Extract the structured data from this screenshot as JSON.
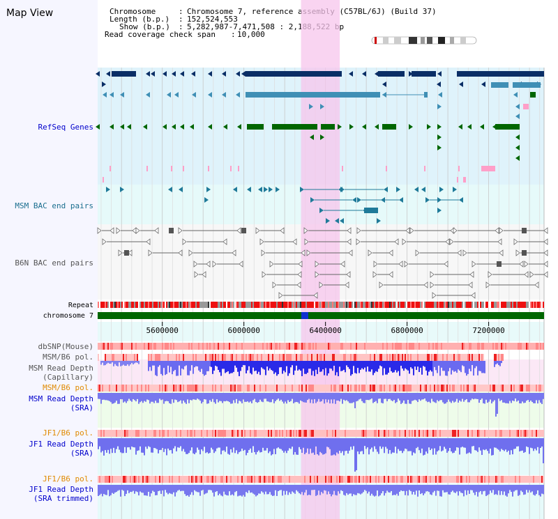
{
  "page": {
    "title": "Map View"
  },
  "header": {
    "chromosome_label": "Chromosome",
    "chromosome_value": "Chromosome 7, reference assembly (C57BL/6J) (Build 37)",
    "length_label": "Length (b.p.)",
    "length_value": "152,524,553",
    "show_label": "Show (b.p.)",
    "show_value": "5,282,987-7,471,508 : 2,188,522 bp",
    "coverage_label": "Read coverage check span",
    "coverage_value": "10,000",
    "separator": ":"
  },
  "tracks": [
    {
      "id": "refseq",
      "label": "RefSeq Genes",
      "color": "#0000cc",
      "bg": "#dff3fb"
    },
    {
      "id": "msm-bac",
      "label": "MSM BAC end pairs",
      "color": "#1a6e8e",
      "bg": "#e6fafa"
    },
    {
      "id": "b6n-bac",
      "label": "B6N BAC end pairs",
      "color": "#555555",
      "bg": "#f7f7f7"
    },
    {
      "id": "repeat",
      "label": "Repeat",
      "color": "#000000"
    },
    {
      "id": "chromosome",
      "label": "chromosome 7",
      "color": "#000000"
    },
    {
      "id": "dbsnp",
      "label": "dbSNP(Mouse)",
      "color": "#555555"
    },
    {
      "id": "msm-b6-pol-1",
      "label": "MSM/B6 pol.",
      "color": "#555555"
    },
    {
      "id": "msm-depth-cap",
      "label": "MSM Read Depth (Capillary)",
      "lines": [
        "MSM Read Depth",
        "(Capillary)"
      ],
      "color": "#555555"
    },
    {
      "id": "msm-b6-pol-2",
      "label": "MSM/B6 pol.",
      "color": "#e08a00"
    },
    {
      "id": "msm-depth-sra",
      "label": "MSM Read Depth (SRA)",
      "lines": [
        "MSM Read Depth",
        "(SRA)"
      ],
      "color": "#0000cc"
    },
    {
      "id": "jf1-b6-pol-1",
      "label": "JF1/B6 pol.",
      "color": "#e08a00"
    },
    {
      "id": "jf1-depth-sra",
      "label": "JF1 Read Depth (SRA)",
      "lines": [
        "JF1 Read Depth",
        "(SRA)"
      ],
      "color": "#0000cc"
    },
    {
      "id": "jf1-b6-pol-2",
      "label": "JF1/B6 pol.",
      "color": "#e08a00"
    },
    {
      "id": "jf1-depth-trim",
      "label": "JF1 Read Depth (SRA trimmed)",
      "lines": [
        "JF1 Read Depth",
        "(SRA trimmed)"
      ],
      "color": "#0000cc"
    }
  ],
  "axis": {
    "start": 5282987,
    "end": 7471508,
    "ticks": [
      "5600000",
      "6000000",
      "6400000",
      "6800000",
      "7200000"
    ],
    "tick_values": [
      5600000,
      6000000,
      6400000,
      6800000,
      7200000
    ]
  },
  "highlight": {
    "start": 6280000,
    "end": 6470000,
    "color": "#f7c6ec"
  },
  "colors": {
    "refseq_dark": "#0a2e66",
    "refseq_mid": "#3f8fb5",
    "refseq_green": "#006600",
    "refseq_pink": "#ff9fc8",
    "msm_bac": "#1f7a99",
    "b6n_bac": "#666666",
    "chromosome_bar": "#006600",
    "depth_blue": "#4a4af0",
    "pol_red": "#ff6060"
  }
}
